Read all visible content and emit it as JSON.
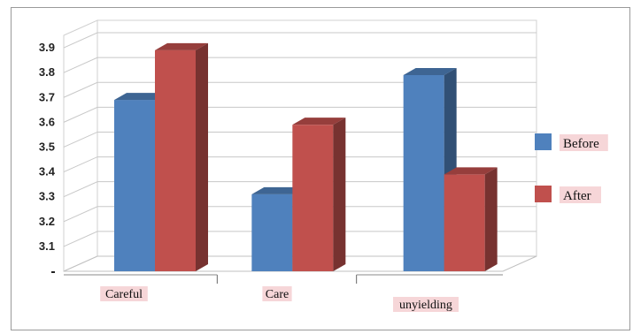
{
  "chart_data": {
    "type": "bar",
    "style": "3d-clustered",
    "categories": [
      "Careful",
      "Care",
      "unyielding"
    ],
    "series": [
      {
        "name": "Before",
        "values": [
          3.69,
          3.31,
          3.79
        ],
        "color": "#4F81BD"
      },
      {
        "name": "After",
        "values": [
          3.89,
          3.59,
          3.39
        ],
        "color": "#C0504D"
      }
    ],
    "y_ticks": [
      "3.1",
      "3.2",
      "3.3",
      "3.4",
      "3.5",
      "3.6",
      "3.7",
      "3.8",
      "3.9"
    ],
    "ylim": [
      3.0,
      3.95
    ],
    "grid": true,
    "legend": "right",
    "title": "",
    "xlabel": "",
    "ylabel": ""
  }
}
